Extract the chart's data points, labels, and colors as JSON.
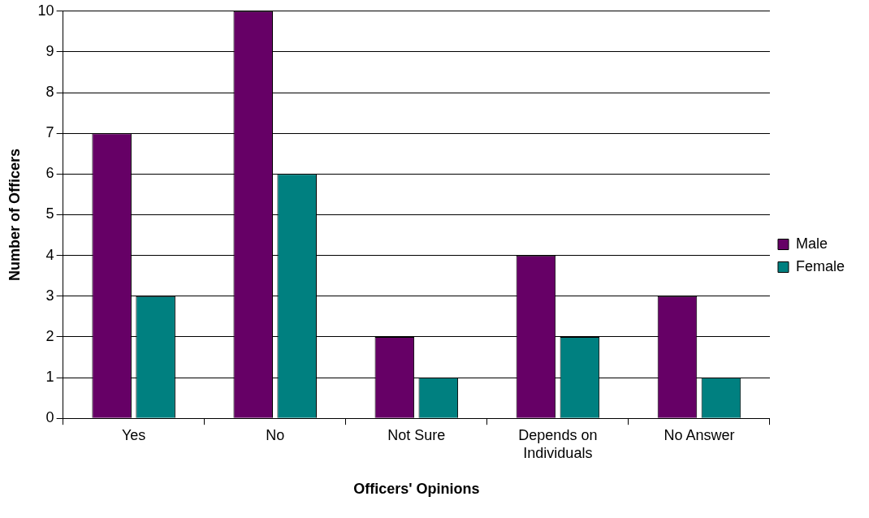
{
  "chart_data": {
    "type": "bar",
    "xlabel": "Officers' Opinions",
    "ylabel": "Number of Officers",
    "categories": [
      "Yes",
      "No",
      "Not Sure",
      "Depends on Individuals",
      "No Answer"
    ],
    "series": [
      {
        "name": "Male",
        "color": "#660066",
        "values": [
          7,
          10,
          2,
          4,
          3
        ]
      },
      {
        "name": "Female",
        "color": "#008080",
        "values": [
          3,
          6,
          1,
          2,
          1
        ]
      }
    ],
    "ylim": [
      0,
      10
    ],
    "yticks": [
      0,
      1,
      2,
      3,
      4,
      5,
      6,
      7,
      8,
      9,
      10
    ],
    "grid": "y",
    "legend": "right"
  }
}
